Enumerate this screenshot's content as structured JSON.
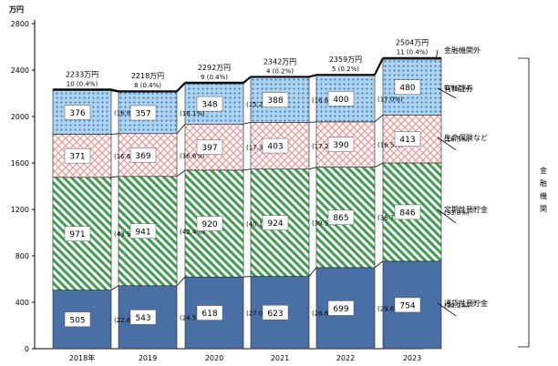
{
  "chart_data": {
    "type": "bar",
    "stacked": true,
    "unit_label": "万円",
    "categories": [
      "2018年",
      "2019",
      "2020",
      "2021",
      "2022",
      "2023"
    ],
    "ylim": [
      0,
      2800
    ],
    "yticks": [
      0,
      400,
      800,
      1200,
      1600,
      2000,
      2400,
      2800
    ],
    "series": [
      {
        "name": "通貨性預貯金",
        "values": [
          505,
          543,
          618,
          623,
          699,
          754
        ],
        "shares": [
          "(22.6%)",
          "(24.5%)",
          "(27.0%)",
          "(26.6%)",
          "(29.6%)",
          "(30.1%)"
        ],
        "color": "#4a6fa5"
      },
      {
        "name": "定期性預貯金",
        "values": [
          971,
          941,
          920,
          924,
          865,
          846
        ],
        "shares": [
          "(43.5%)",
          "(42.4%)",
          "(40.1%)",
          "(39.5%)",
          "(36.7%)",
          "(33.8%)"
        ],
        "color": "#3f9d4f"
      },
      {
        "name": "生命保険など",
        "values": [
          371,
          369,
          397,
          403,
          390,
          413
        ],
        "shares": [
          "(16.6%)",
          "(16.6%)",
          "(17.3%)",
          "(17.2%)",
          "(16.5%)",
          "(16.5%)"
        ],
        "color": "#e08a8a"
      },
      {
        "name": "有価証券",
        "values": [
          376,
          357,
          348,
          388,
          400,
          480
        ],
        "shares": [
          "(16.8%)",
          "(16.1%)",
          "(15.2%)",
          "(16.6%)",
          "(17.0%)",
          "(19.2%)"
        ],
        "color": "#5a9fd6"
      },
      {
        "name": "金融機関外",
        "values": [
          10,
          8,
          9,
          4,
          5,
          11
        ],
        "shares": [
          "(0.4%)",
          "(0.4%)",
          "(0.4%)",
          "(0.2%)",
          "(0.2%)",
          "(0.4%)"
        ],
        "color": "#5a9fd6"
      }
    ],
    "totals": [
      "2233万円",
      "2218万円",
      "2292万円",
      "2342万円",
      "2359万円",
      "2504万円"
    ],
    "bracket_label": "金融機関",
    "grid": false,
    "legend": "right"
  }
}
